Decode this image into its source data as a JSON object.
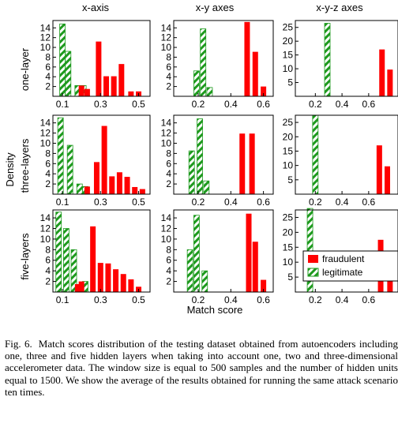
{
  "figure": {
    "column_titles": [
      "x-axis",
      "x-y axes",
      "x-y-z axes"
    ],
    "row_titles": [
      "one-layer",
      "three-layers",
      "five-layers"
    ],
    "ylabel": "Density",
    "xlabel": "Match score",
    "legend": {
      "fraudulent": "fraudulent",
      "legitimate": "legitimate"
    },
    "colors": {
      "fraudulent": "#ff0000",
      "legitimate": "#1e9a1e"
    }
  },
  "caption": {
    "label": "Fig. 6.",
    "text": "Match scores distribution of the testing dataset obtained from autoencoders including one, three and five hidden layers when taking into account one, two and three-dimensional accelerometer data. The window size is equal to 500 samples and the number of hidden units equal to 1500. We show the average of the results obtained for running the same attack scenario ten times."
  },
  "chart_data": [
    {
      "type": "bar",
      "row": "one-layer",
      "column": "x-axis",
      "xlim": [
        0.05,
        0.56
      ],
      "ylim": [
        0,
        15.5
      ],
      "xticks": [
        "0.1",
        "0.3",
        "0.5"
      ],
      "yticks": [
        "2",
        "4",
        "6",
        "8",
        "10",
        "12",
        "14"
      ],
      "series": [
        {
          "name": "legitimate",
          "x": [
            0.1,
            0.13,
            0.18,
            0.21
          ],
          "values": [
            14.8,
            9.2,
            2.2,
            2.2
          ]
        },
        {
          "name": "fraudulent",
          "x": [
            0.2,
            0.23,
            0.29,
            0.33,
            0.37,
            0.41,
            0.46,
            0.5
          ],
          "values": [
            2.2,
            1.5,
            11.2,
            4.1,
            4.1,
            6.6,
            1.0,
            1.0
          ]
        }
      ]
    },
    {
      "type": "bar",
      "row": "one-layer",
      "column": "x-y axes",
      "xlim": [
        0.05,
        0.66
      ],
      "ylim": [
        0,
        15.5
      ],
      "xticks": [
        "0.2",
        "0.4",
        "0.6"
      ],
      "yticks": [
        "2",
        "4",
        "6",
        "8",
        "10",
        "12",
        "14"
      ],
      "series": [
        {
          "name": "legitimate",
          "x": [
            0.19,
            0.23,
            0.27
          ],
          "values": [
            5.2,
            13.8,
            1.8
          ]
        },
        {
          "name": "fraudulent",
          "x": [
            0.5,
            0.55,
            0.6
          ],
          "values": [
            15.2,
            9.1,
            2.0
          ]
        }
      ]
    },
    {
      "type": "bar",
      "row": "one-layer",
      "column": "x-y-z axes",
      "xlim": [
        0.05,
        0.82
      ],
      "ylim": [
        0,
        27.5
      ],
      "xticks": [
        "0.2",
        "0.4",
        "0.6"
      ],
      "yticks": [
        "5",
        "10",
        "15",
        "20",
        "25"
      ],
      "series": [
        {
          "name": "legitimate",
          "x": [
            0.29
          ],
          "values": [
            26.5
          ]
        },
        {
          "name": "fraudulent",
          "x": [
            0.7,
            0.76
          ],
          "values": [
            17.0,
            9.7
          ]
        }
      ]
    },
    {
      "type": "bar",
      "row": "three-layers",
      "column": "x-axis",
      "xlim": [
        0.05,
        0.56
      ],
      "ylim": [
        0,
        15.5
      ],
      "xticks": [
        "0.1",
        "0.3",
        "0.5"
      ],
      "yticks": [
        "2",
        "4",
        "6",
        "8",
        "10",
        "12",
        "14"
      ],
      "series": [
        {
          "name": "legitimate",
          "x": [
            0.09,
            0.14,
            0.19,
            0.22
          ],
          "values": [
            15.0,
            9.6,
            2.0,
            1.5
          ]
        },
        {
          "name": "fraudulent",
          "x": [
            0.23,
            0.28,
            0.32,
            0.36,
            0.4,
            0.44,
            0.48,
            0.52
          ],
          "values": [
            1.5,
            6.3,
            13.4,
            3.5,
            4.3,
            3.4,
            1.4,
            1.0
          ]
        }
      ]
    },
    {
      "type": "bar",
      "row": "three-layers",
      "column": "x-y axes",
      "xlim": [
        0.05,
        0.66
      ],
      "ylim": [
        0,
        15.5
      ],
      "xticks": [
        "0.2",
        "0.4",
        "0.6"
      ],
      "yticks": [
        "2",
        "4",
        "6",
        "8",
        "10",
        "12",
        "14"
      ],
      "series": [
        {
          "name": "legitimate",
          "x": [
            0.16,
            0.21,
            0.25
          ],
          "values": [
            8.5,
            14.8,
            2.6
          ]
        },
        {
          "name": "fraudulent",
          "x": [
            0.47,
            0.53
          ],
          "values": [
            11.9,
            11.9
          ]
        }
      ]
    },
    {
      "type": "bar",
      "row": "three-layers",
      "column": "x-y-z axes",
      "xlim": [
        0.05,
        0.82
      ],
      "ylim": [
        0,
        27.5
      ],
      "xticks": [
        "0.2",
        "0.4",
        "0.6"
      ],
      "yticks": [
        "5",
        "10",
        "15",
        "20",
        "25"
      ],
      "series": [
        {
          "name": "legitimate",
          "x": [
            0.2
          ],
          "values": [
            27.5
          ]
        },
        {
          "name": "fraudulent",
          "x": [
            0.68,
            0.74
          ],
          "values": [
            17.0,
            9.7
          ]
        }
      ]
    },
    {
      "type": "bar",
      "row": "five-layers",
      "column": "x-axis",
      "xlim": [
        0.05,
        0.56
      ],
      "ylim": [
        0,
        15.5
      ],
      "xticks": [
        "0.1",
        "0.3",
        "0.5"
      ],
      "yticks": [
        "2",
        "4",
        "6",
        "8",
        "10",
        "12",
        "14"
      ],
      "series": [
        {
          "name": "legitimate",
          "x": [
            0.08,
            0.12,
            0.16,
            0.22
          ],
          "values": [
            15.1,
            12.0,
            8.0,
            2.0
          ]
        },
        {
          "name": "fraudulent",
          "x": [
            0.18,
            0.2,
            0.26,
            0.3,
            0.34,
            0.38,
            0.42,
            0.46,
            0.5
          ],
          "values": [
            1.5,
            2.0,
            12.4,
            5.5,
            5.4,
            4.3,
            3.4,
            2.4,
            1.0
          ]
        }
      ]
    },
    {
      "type": "bar",
      "row": "five-layers",
      "column": "x-y axes",
      "xlim": [
        0.05,
        0.66
      ],
      "ylim": [
        0,
        15.5
      ],
      "xticks": [
        "0.2",
        "0.4",
        "0.6"
      ],
      "yticks": [
        "2",
        "4",
        "6",
        "8",
        "10",
        "12",
        "14"
      ],
      "series": [
        {
          "name": "legitimate",
          "x": [
            0.15,
            0.19,
            0.24
          ],
          "values": [
            8.0,
            14.5,
            4.0
          ]
        },
        {
          "name": "fraudulent",
          "x": [
            0.51,
            0.55,
            0.6
          ],
          "values": [
            14.8,
            9.5,
            2.3
          ]
        }
      ]
    },
    {
      "type": "bar",
      "row": "five-layers",
      "column": "x-y-z axes",
      "xlim": [
        0.05,
        0.82
      ],
      "ylim": [
        0,
        27.5
      ],
      "xticks": [
        "0.2",
        "0.4",
        "0.6"
      ],
      "yticks": [
        "5",
        "10",
        "15",
        "20",
        "25"
      ],
      "series": [
        {
          "name": "legitimate",
          "x": [
            0.16
          ],
          "values": [
            28.0
          ]
        },
        {
          "name": "fraudulent",
          "x": [
            0.69,
            0.76
          ],
          "values": [
            17.5,
            9.5
          ]
        }
      ]
    }
  ]
}
